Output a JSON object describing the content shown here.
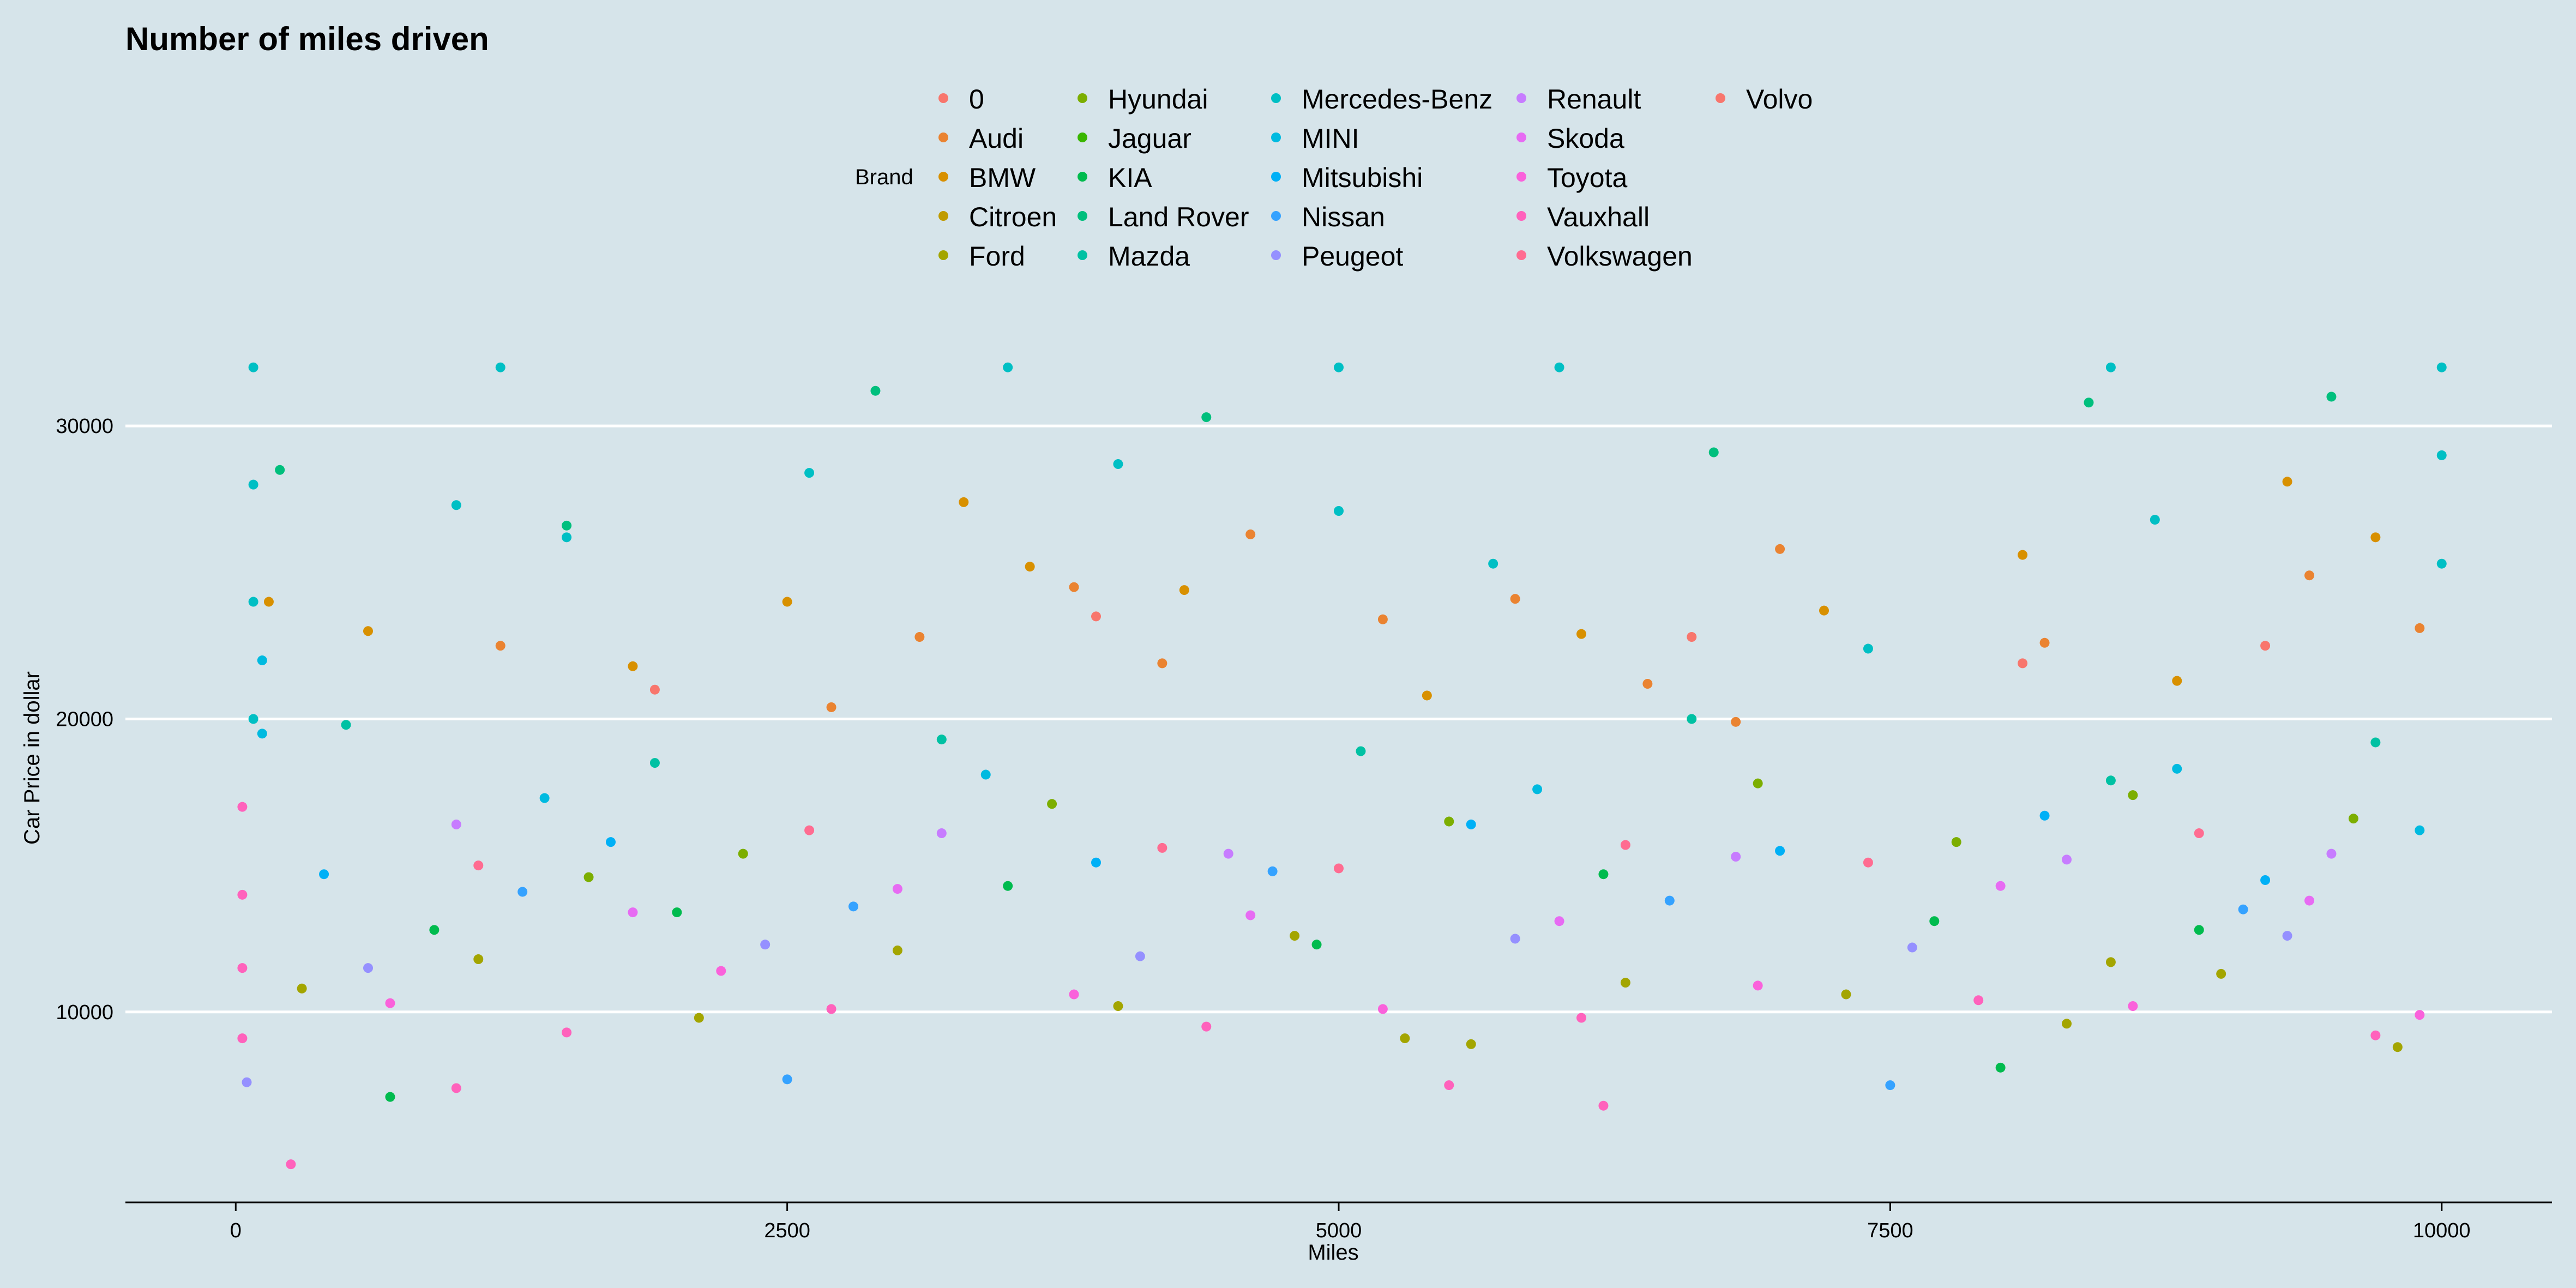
{
  "chart_data": {
    "type": "scatter",
    "title": "Number of miles driven",
    "xlabel": "Miles",
    "ylabel": "Car Price in dollar",
    "xlim": [
      -500,
      10500
    ],
    "ylim": [
      3500,
      33000
    ],
    "x_ticks": [
      0,
      2500,
      5000,
      7500,
      10000
    ],
    "x_tick_labels": [
      "0",
      "2500",
      "5000",
      "7500",
      "10000"
    ],
    "y_ticks": [
      10000,
      20000,
      30000
    ],
    "y_tick_labels": [
      "10000",
      "20000",
      "30000"
    ],
    "grid": {
      "horizontal_major": true,
      "vertical": false,
      "color": "#ffffff"
    },
    "legend": {
      "title": "Brand",
      "placement": "top",
      "columns": 5,
      "entries": [
        {
          "name": "0",
          "color": "#F8766D"
        },
        {
          "name": "Audi",
          "color": "#EA8331"
        },
        {
          "name": "BMW",
          "color": "#D89000"
        },
        {
          "name": "Citroen",
          "color": "#C09B00"
        },
        {
          "name": "Ford",
          "color": "#A3A500"
        },
        {
          "name": "Hyundai",
          "color": "#7CAE00"
        },
        {
          "name": "Jaguar",
          "color": "#39B600"
        },
        {
          "name": "KIA",
          "color": "#00BB4E"
        },
        {
          "name": "Land Rover",
          "color": "#00BF7D"
        },
        {
          "name": "Mazda",
          "color": "#00C1A3"
        },
        {
          "name": "Mercedes-Benz",
          "color": "#00BFC4"
        },
        {
          "name": "MINI",
          "color": "#00BAE0"
        },
        {
          "name": "Mitsubishi",
          "color": "#00B0F6"
        },
        {
          "name": "Nissan",
          "color": "#35A2FF"
        },
        {
          "name": "Peugeot",
          "color": "#9590FF"
        },
        {
          "name": "Renault",
          "color": "#C77CFF"
        },
        {
          "name": "Skoda",
          "color": "#E76BF3"
        },
        {
          "name": "Toyota",
          "color": "#FA62DB"
        },
        {
          "name": "Vauxhall",
          "color": "#FF62BC"
        },
        {
          "name": "Volkswagen",
          "color": "#FF6C91"
        },
        {
          "name": "Volvo",
          "color": "#F8766D"
        }
      ]
    },
    "series": [
      {
        "name": "Audi",
        "points": [
          [
            3100,
            22800
          ],
          [
            3800,
            24500
          ],
          [
            4200,
            21900
          ],
          [
            4600,
            26300
          ],
          [
            5200,
            23400
          ],
          [
            5800,
            24100
          ],
          [
            6400,
            21200
          ],
          [
            7000,
            25800
          ],
          [
            8200,
            22600
          ],
          [
            9400,
            24900
          ],
          [
            9900,
            23100
          ],
          [
            1200,
            22500
          ],
          [
            2700,
            20400
          ],
          [
            6800,
            19900
          ]
        ]
      },
      {
        "name": "BMW",
        "points": [
          [
            150,
            24000
          ],
          [
            600,
            23000
          ],
          [
            1800,
            21800
          ],
          [
            2500,
            24000
          ],
          [
            3600,
            25200
          ],
          [
            4300,
            24400
          ],
          [
            5400,
            20800
          ],
          [
            6100,
            22900
          ],
          [
            7200,
            23700
          ],
          [
            8100,
            25600
          ],
          [
            8800,
            21300
          ],
          [
            9300,
            28100
          ],
          [
            9700,
            26200
          ],
          [
            3300,
            27400
          ]
        ]
      },
      {
        "name": "Ford",
        "points": [
          [
            300,
            10800
          ],
          [
            1100,
            11800
          ],
          [
            2100,
            9800
          ],
          [
            3000,
            12100
          ],
          [
            4000,
            10200
          ],
          [
            5300,
            9100
          ],
          [
            6300,
            11000
          ],
          [
            7300,
            10600
          ],
          [
            8300,
            9600
          ],
          [
            9000,
            11300
          ],
          [
            9800,
            8800
          ],
          [
            4800,
            12600
          ],
          [
            5600,
            8900
          ],
          [
            8500,
            11700
          ]
        ]
      },
      {
        "name": "Hyundai",
        "points": [
          [
            2300,
            15400
          ],
          [
            3700,
            17100
          ],
          [
            5500,
            16500
          ],
          [
            6900,
            17800
          ],
          [
            7800,
            15800
          ],
          [
            8600,
            17400
          ],
          [
            9600,
            16600
          ],
          [
            1600,
            14600
          ]
        ]
      },
      {
        "name": "KIA",
        "points": [
          [
            900,
            12800
          ],
          [
            2000,
            13400
          ],
          [
            3500,
            14300
          ],
          [
            4900,
            12300
          ],
          [
            6200,
            14700
          ],
          [
            7700,
            13100
          ],
          [
            8900,
            12800
          ],
          [
            700,
            7100
          ],
          [
            8000,
            8100
          ]
        ]
      },
      {
        "name": "Land Rover",
        "points": [
          [
            200,
            28500
          ],
          [
            2900,
            31200
          ],
          [
            4400,
            30300
          ],
          [
            6700,
            29100
          ],
          [
            8400,
            30800
          ],
          [
            9500,
            31000
          ],
          [
            1500,
            26600
          ]
        ]
      },
      {
        "name": "Mazda",
        "points": [
          [
            500,
            19800
          ],
          [
            1900,
            18500
          ],
          [
            3200,
            19300
          ],
          [
            5100,
            18900
          ],
          [
            6600,
            20000
          ],
          [
            8500,
            17900
          ],
          [
            9700,
            19200
          ]
        ]
      },
      {
        "name": "Mercedes-Benz",
        "points": [
          [
            80,
            32000
          ],
          [
            80,
            28000
          ],
          [
            80,
            24000
          ],
          [
            80,
            20000
          ],
          [
            1000,
            27300
          ],
          [
            1500,
            26200
          ],
          [
            2600,
            28400
          ],
          [
            4000,
            28700
          ],
          [
            5000,
            27100
          ],
          [
            5700,
            25300
          ],
          [
            7400,
            22400
          ],
          [
            8700,
            26800
          ],
          [
            10000,
            32000
          ],
          [
            10000,
            29000
          ],
          [
            10000,
            25300
          ],
          [
            6000,
            32000
          ],
          [
            3500,
            32000
          ],
          [
            1200,
            32000
          ],
          [
            8500,
            32000
          ],
          [
            5000,
            32000
          ]
        ]
      },
      {
        "name": "MINI",
        "points": [
          [
            120,
            22000
          ],
          [
            120,
            19500
          ],
          [
            1400,
            17300
          ],
          [
            3400,
            18100
          ],
          [
            5900,
            17600
          ],
          [
            8800,
            18300
          ],
          [
            9900,
            16200
          ]
        ]
      },
      {
        "name": "Mitsubishi",
        "points": [
          [
            400,
            14700
          ],
          [
            1700,
            15800
          ],
          [
            3900,
            15100
          ],
          [
            5600,
            16400
          ],
          [
            7000,
            15500
          ],
          [
            8200,
            16700
          ],
          [
            9200,
            14500
          ]
        ]
      },
      {
        "name": "Nissan",
        "points": [
          [
            1300,
            14100
          ],
          [
            2800,
            13600
          ],
          [
            4700,
            14800
          ],
          [
            6500,
            13800
          ],
          [
            7500,
            7500
          ],
          [
            9100,
            13500
          ],
          [
            2500,
            7700
          ]
        ]
      },
      {
        "name": "Peugeot",
        "points": [
          [
            600,
            11500
          ],
          [
            2400,
            12300
          ],
          [
            4100,
            11900
          ],
          [
            5800,
            12500
          ],
          [
            7600,
            12200
          ],
          [
            9300,
            12600
          ],
          [
            50,
            7600
          ]
        ]
      },
      {
        "name": "Renault",
        "points": [
          [
            1000,
            16400
          ],
          [
            3200,
            16100
          ],
          [
            4500,
            15400
          ],
          [
            6800,
            15300
          ],
          [
            8300,
            15200
          ],
          [
            9500,
            15400
          ]
        ]
      },
      {
        "name": "Skoda",
        "points": [
          [
            1800,
            13400
          ],
          [
            3000,
            14200
          ],
          [
            4600,
            13300
          ],
          [
            6000,
            13100
          ],
          [
            8000,
            14300
          ],
          [
            9400,
            13800
          ]
        ]
      },
      {
        "name": "Toyota",
        "points": [
          [
            700,
            10300
          ],
          [
            2200,
            11400
          ],
          [
            3800,
            10600
          ],
          [
            5200,
            10100
          ],
          [
            6900,
            10900
          ],
          [
            8600,
            10200
          ],
          [
            9900,
            9900
          ]
        ]
      },
      {
        "name": "Vauxhall",
        "points": [
          [
            30,
            9100
          ],
          [
            30,
            11500
          ],
          [
            30,
            14000
          ],
          [
            30,
            17000
          ],
          [
            1500,
            9300
          ],
          [
            2700,
            10100
          ],
          [
            4400,
            9500
          ],
          [
            6100,
            9800
          ],
          [
            7900,
            10400
          ],
          [
            9700,
            9200
          ],
          [
            250,
            4800
          ],
          [
            6200,
            6800
          ],
          [
            5500,
            7500
          ],
          [
            1000,
            7400
          ]
        ]
      },
      {
        "name": "Volkswagen",
        "points": [
          [
            1100,
            15000
          ],
          [
            2600,
            16200
          ],
          [
            4200,
            15600
          ],
          [
            5000,
            14900
          ],
          [
            6300,
            15700
          ],
          [
            7400,
            15100
          ],
          [
            8900,
            16100
          ]
        ]
      },
      {
        "name": "Volvo",
        "points": [
          [
            1900,
            21000
          ],
          [
            3900,
            23500
          ],
          [
            6600,
            22800
          ],
          [
            8100,
            21900
          ],
          [
            9200,
            22500
          ]
        ]
      }
    ]
  }
}
